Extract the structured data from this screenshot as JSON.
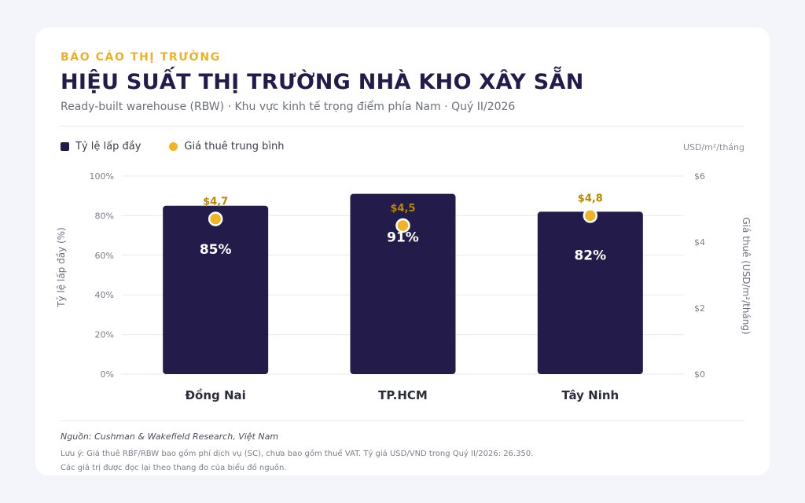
{
  "header": {
    "kicker": "BÁO CÁO THỊ TRƯỜNG",
    "title": "HIỆU SUẤT THỊ TRƯỜNG NHÀ KHO XÂY SẴN",
    "subtitle": "Ready-built warehouse (RBW) · Khu vực kinh tế trọng điểm phía Nam · Quý II/2026"
  },
  "legend": {
    "occupancy": "Tỷ lệ lấp đầy",
    "rent": "Giá thuê trung bình",
    "unit": "USD/m²/tháng"
  },
  "colors": {
    "bar": "#231c4a",
    "dot": "#f0b429",
    "rent_label": "#b8860b"
  },
  "chart_data": {
    "type": "bar",
    "categories": [
      "Đồng Nai",
      "TP.HCM",
      "Tây Ninh"
    ],
    "series": [
      {
        "name": "Tỷ lệ lấp đầy",
        "values": [
          85,
          91,
          82
        ],
        "value_labels": [
          "85%",
          "91%",
          "82%"
        ],
        "axis": "left"
      },
      {
        "name": "Giá thuê trung bình",
        "values": [
          4.7,
          4.5,
          4.8
        ],
        "value_labels": [
          "$4,7",
          "$4,5",
          "$4,8"
        ],
        "axis": "right",
        "mark": "dot"
      }
    ],
    "ylabel": "Tỷ lệ lấp đầy (%)",
    "ylim": [
      0,
      100
    ],
    "yticks": [
      "0%",
      "20%",
      "40%",
      "60%",
      "80%",
      "100%"
    ],
    "y2label": "Giá thuê (USD/m²/tháng)",
    "y2lim": [
      0,
      6
    ],
    "y2ticks": [
      "$0",
      "$2",
      "$4",
      "$6"
    ],
    "grid": true,
    "legend_position": "top-left"
  },
  "footer": {
    "source": "Nguồn: Cushman & Wakefield Research, Việt Nam",
    "note1": "Lưu ý: Giá thuê RBF/RBW bao gồm phí dịch vụ (SC), chưa bao gồm thuế VAT. Tỷ giá USD/VND trong Quý II/2026: 26.350.",
    "note2": "Các giá trị được đọc lại theo thang đo của biểu đồ nguồn."
  }
}
